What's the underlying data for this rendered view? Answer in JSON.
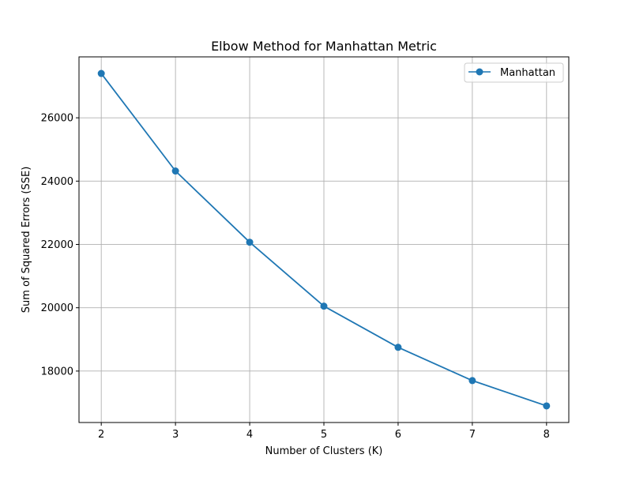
{
  "chart_data": {
    "type": "line",
    "title": "Elbow Method for Manhattan Metric",
    "xlabel": "Number of Clusters (K)",
    "ylabel": "Sum of Squared Errors (SSE)",
    "x": [
      2,
      3,
      4,
      5,
      6,
      7,
      8
    ],
    "series": [
      {
        "name": "Manhattan",
        "values": [
          27400,
          24320,
          22070,
          20050,
          18750,
          17700,
          16900
        ],
        "color": "#1f77b4",
        "marker": "circle"
      }
    ],
    "xticks": [
      2,
      3,
      4,
      5,
      6,
      7,
      8
    ],
    "yticks": [
      18000,
      20000,
      22000,
      24000,
      26000
    ],
    "xlim": [
      1.7,
      8.3
    ],
    "ylim": [
      16375,
      27925
    ],
    "grid": true,
    "legend_position": "top-right"
  }
}
